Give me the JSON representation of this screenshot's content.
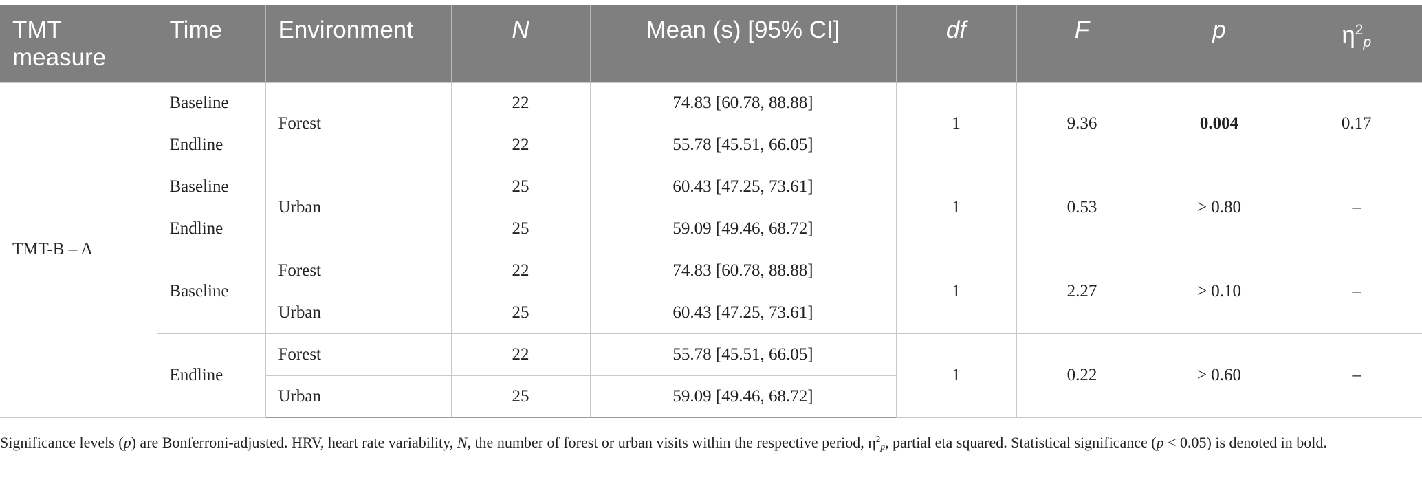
{
  "table": {
    "headers": {
      "tmt_measure": "TMT measure",
      "time": "Time",
      "environment": "Environment",
      "n": "N",
      "mean": "Mean (s) [95% CI]",
      "df": "df",
      "f": "F",
      "p": "p",
      "eta_symbol": "η",
      "eta_sup": "2",
      "eta_sub": "p"
    },
    "measure": "TMT-B – A",
    "groups": [
      {
        "rows": [
          {
            "time": "Baseline",
            "n": "22",
            "mean": "74.83 [60.78, 88.88]"
          },
          {
            "time": "Endline",
            "n": "22",
            "mean": "55.78 [45.51, 66.05]"
          }
        ],
        "environment": "Forest",
        "df": "1",
        "f": "9.36",
        "p": "0.004",
        "p_bold": true,
        "eta": "0.17"
      },
      {
        "rows": [
          {
            "time": "Baseline",
            "n": "25",
            "mean": "60.43 [47.25, 73.61]"
          },
          {
            "time": "Endline",
            "n": "25",
            "mean": "59.09 [49.46, 68.72]"
          }
        ],
        "environment": "Urban",
        "df": "1",
        "f": "0.53",
        "p": "> 0.80",
        "eta": "–"
      },
      {
        "time": "Baseline",
        "rows": [
          {
            "environment": "Forest",
            "n": "22",
            "mean": "74.83 [60.78, 88.88]"
          },
          {
            "environment": "Urban",
            "n": "25",
            "mean": "60.43 [47.25, 73.61]"
          }
        ],
        "df": "1",
        "f": "2.27",
        "p": "> 0.10",
        "eta": "–"
      },
      {
        "time": "Endline",
        "rows": [
          {
            "environment": "Forest",
            "n": "22",
            "mean": "55.78 [45.51, 66.05]"
          },
          {
            "environment": "Urban",
            "n": "25",
            "mean": "59.09 [49.46, 68.72]"
          }
        ],
        "df": "1",
        "f": "0.22",
        "p": "> 0.60",
        "eta": "–"
      }
    ]
  },
  "footnote": {
    "part1": "Significance levels (",
    "p1": "p",
    "part2": ") are Bonferroni-adjusted. HRV, heart rate variability, ",
    "n": "N",
    "part3": ", the number of forest or urban visits within the respective period, η",
    "eta_sup": "2",
    "eta_sub": "p",
    "part4": ", partial eta squared. Statistical significance (",
    "p2": "p",
    "part5": " < 0.05) is denoted in bold."
  }
}
